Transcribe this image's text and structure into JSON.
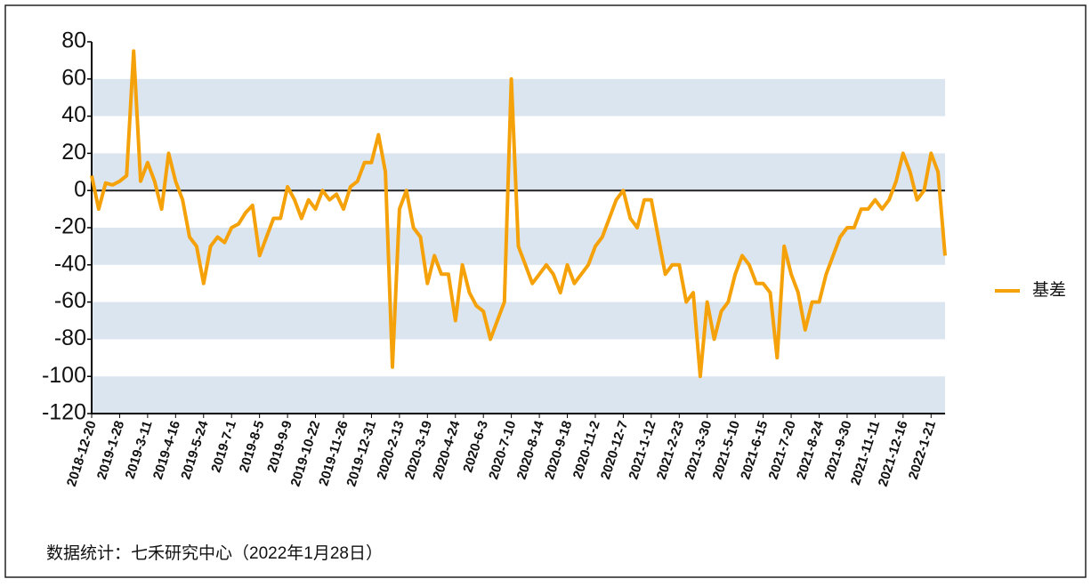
{
  "chart_data": {
    "type": "line",
    "categories": [
      "2018-12-20",
      null,
      null,
      null,
      "2019-1-28",
      null,
      null,
      null,
      "2019-3-11",
      null,
      null,
      null,
      "2019-4-16",
      null,
      null,
      null,
      "2019-5-24",
      null,
      null,
      null,
      "2019-7-1",
      null,
      null,
      null,
      "2019-8-5",
      null,
      null,
      null,
      "2019-9-9",
      null,
      null,
      null,
      "2019-10-22",
      null,
      null,
      null,
      "2019-11-26",
      null,
      null,
      null,
      "2019-12-31",
      null,
      null,
      null,
      "2020-2-13",
      null,
      null,
      null,
      "2020-3-19",
      null,
      null,
      null,
      "2020-4-24",
      null,
      null,
      null,
      "2020-6-3",
      null,
      null,
      null,
      "2020-7-10",
      null,
      null,
      null,
      "2020-8-14",
      null,
      null,
      null,
      "2020-9-18",
      null,
      null,
      null,
      "2020-11-2",
      null,
      null,
      null,
      "2020-12-7",
      null,
      null,
      null,
      "2021-1-12",
      null,
      null,
      null,
      "2021-2-23",
      null,
      null,
      null,
      "2021-3-30",
      null,
      null,
      null,
      "2021-5-10",
      null,
      null,
      null,
      "2021-6-15",
      null,
      null,
      null,
      "2021-7-20",
      null,
      null,
      null,
      "2021-8-24",
      null,
      null,
      null,
      "2021-9-30",
      null,
      null,
      null,
      "2021-11-11",
      null,
      null,
      null,
      "2021-12-16",
      null,
      null,
      null,
      "2022-1-21",
      null,
      null
    ],
    "series": [
      {
        "name": "基差",
        "color": "#f5a20a",
        "values": [
          8,
          -10,
          4,
          3,
          5,
          8,
          75,
          5,
          15,
          5,
          -10,
          20,
          5,
          -5,
          -25,
          -30,
          -50,
          -30,
          -25,
          -28,
          -20,
          -18,
          -12,
          -8,
          -35,
          -25,
          -15,
          -15,
          2,
          -5,
          -15,
          -5,
          -10,
          0,
          -5,
          -2,
          -10,
          2,
          5,
          15,
          15,
          30,
          10,
          -95,
          -10,
          0,
          -20,
          -25,
          -50,
          -35,
          -45,
          -45,
          -70,
          -40,
          -55,
          -62,
          -65,
          -80,
          -70,
          -60,
          60,
          -30,
          -40,
          -50,
          -45,
          -40,
          -45,
          -55,
          -40,
          -50,
          -45,
          -40,
          -30,
          -25,
          -15,
          -5,
          0,
          -15,
          -20,
          -5,
          -5,
          -25,
          -45,
          -40,
          -40,
          -60,
          -55,
          -100,
          -60,
          -80,
          -65,
          -60,
          -45,
          -35,
          -40,
          -50,
          -50,
          -55,
          -90,
          -30,
          -45,
          -55,
          -75,
          -60,
          -60,
          -45,
          -35,
          -25,
          -20,
          -20,
          -10,
          -10,
          -5,
          -10,
          -5,
          5,
          20,
          10,
          -5,
          0,
          20,
          10,
          -35
        ]
      }
    ],
    "ylim": [
      -120,
      80
    ],
    "yticks": [
      -120,
      -100,
      -80,
      -60,
      -40,
      -20,
      0,
      20,
      40,
      60,
      80
    ],
    "grid_bands": "alternate",
    "band_color": "#dbe5f0",
    "zero_line": true,
    "legend": "right",
    "source": "数据统计：七禾研究中心（2022年1月28日）"
  }
}
